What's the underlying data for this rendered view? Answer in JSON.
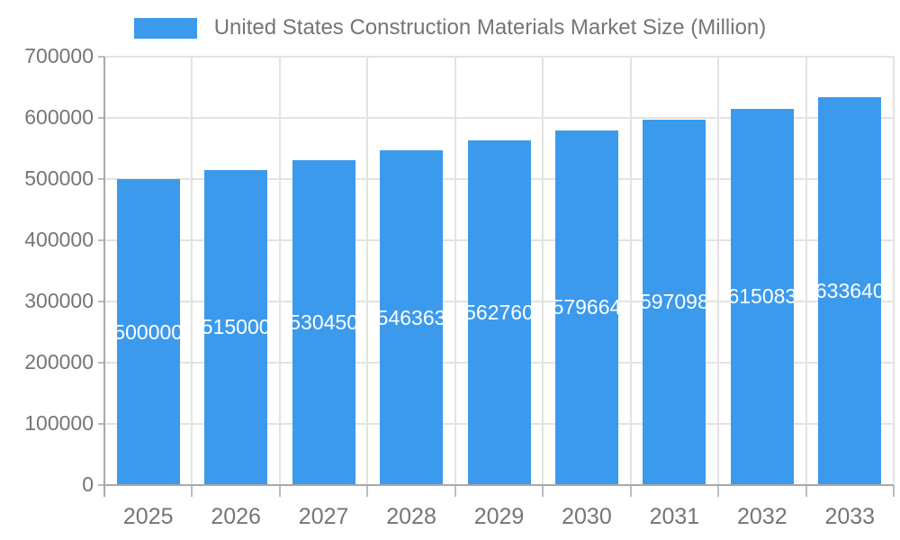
{
  "legend": {
    "label": "United States Construction Materials Market Size (Million)"
  },
  "chart_data": {
    "type": "bar",
    "title": "United States Construction Materials Market Size (Million)",
    "series_name": "United States Construction Materials Market Size (Million)",
    "categories": [
      "2025",
      "2026",
      "2027",
      "2028",
      "2029",
      "2030",
      "2031",
      "2032",
      "2033"
    ],
    "values": [
      500000,
      515000,
      530450,
      546363,
      562760,
      579664,
      597098,
      615083,
      633640
    ],
    "bar_labels": [
      "500000",
      "515000",
      "530450",
      "546363",
      "562760",
      "579664",
      "597098",
      "615083",
      "633640"
    ],
    "xlabel": "",
    "ylabel": "",
    "ylim": [
      0,
      700000
    ],
    "ytick_interval": 100000,
    "ytick_labels": [
      "0",
      "100000",
      "200000",
      "300000",
      "400000",
      "500000",
      "600000",
      "700000"
    ],
    "grid": true,
    "legend_position": "top",
    "colors": {
      "bar": "#3C9AEC",
      "grid": "#E3E3E3",
      "axis": "#A9A9A9",
      "tick": "#BDBDBD",
      "text": "#757575",
      "bar_label": "#FFFFFF",
      "background": "#FFFFFF"
    }
  }
}
